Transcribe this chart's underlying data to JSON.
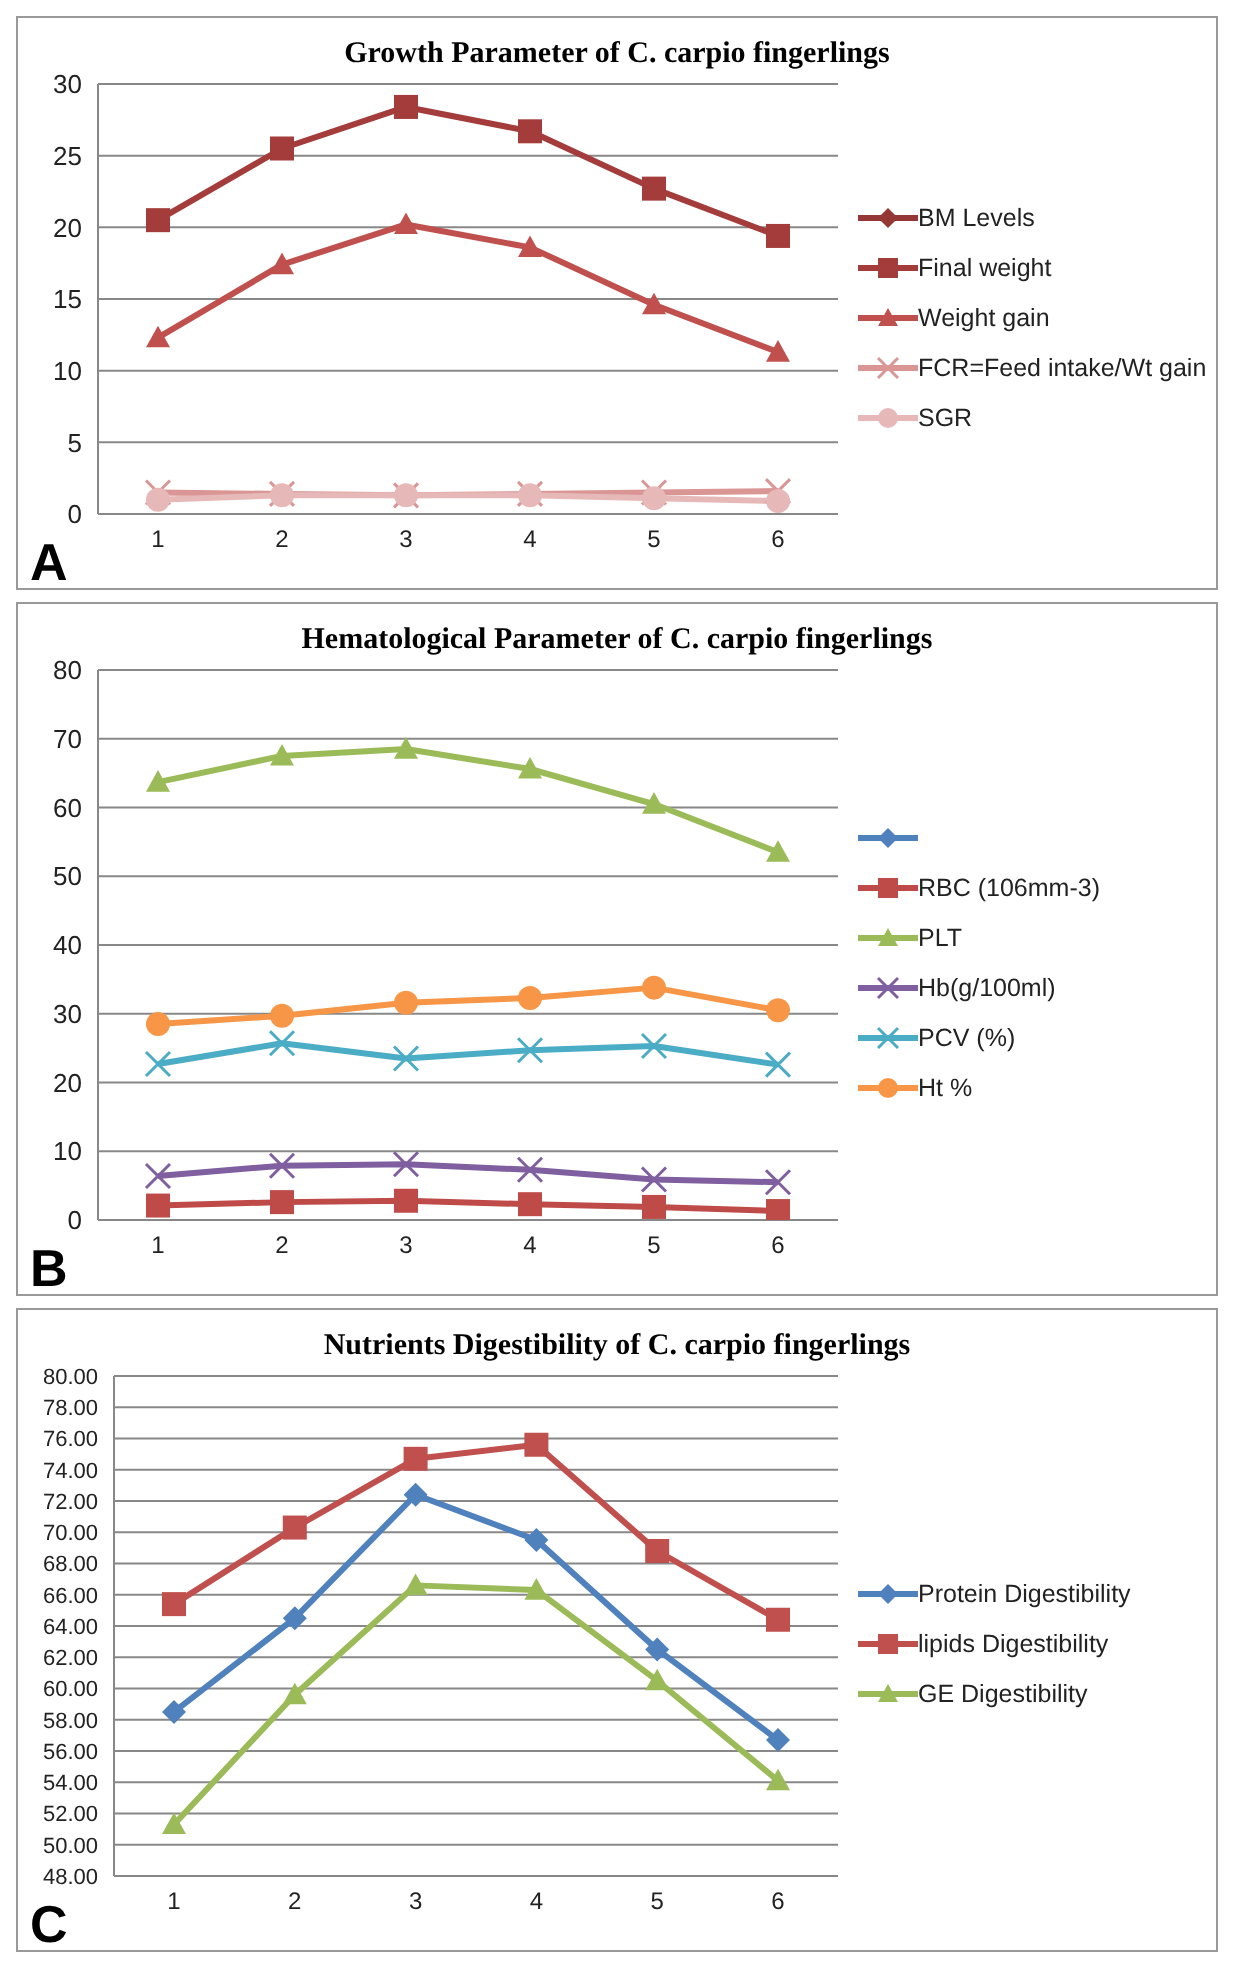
{
  "chart_data": [
    {
      "type": "line",
      "title": "Growth Parameter of C. carpio fingerlings",
      "categories": [
        "1",
        "2",
        "3",
        "4",
        "5",
        "6"
      ],
      "ylim": [
        0,
        30
      ],
      "yticks": [
        0,
        5,
        10,
        15,
        20,
        25,
        30
      ],
      "grid": "y",
      "legend": "right",
      "annotations": [
        "A"
      ],
      "series": [
        {
          "name": "BM Levels",
          "color": "#953735",
          "marker": "diamond",
          "values": [
            null,
            null,
            null,
            null,
            null,
            null
          ]
        },
        {
          "name": "Final weight",
          "color": "#a33c3a",
          "marker": "square",
          "values": [
            20.5,
            25.5,
            28.4,
            26.7,
            22.7,
            19.4
          ]
        },
        {
          "name": "Weight gain",
          "color": "#c0504d",
          "marker": "triangle",
          "values": [
            12.3,
            17.4,
            20.2,
            18.6,
            14.6,
            11.3
          ]
        },
        {
          "name": "FCR=Feed intake/Wt gain",
          "color": "#d99694",
          "marker": "cross",
          "values": [
            1.5,
            1.4,
            1.3,
            1.4,
            1.5,
            1.6
          ]
        },
        {
          "name": "SGR",
          "color": "#e6b9b8",
          "marker": "circle",
          "values": [
            1.0,
            1.3,
            1.3,
            1.3,
            1.1,
            0.9
          ]
        }
      ]
    },
    {
      "type": "line",
      "title": "Hematological Parameter of C. carpio fingerlings",
      "categories": [
        "1",
        "2",
        "3",
        "4",
        "5",
        "6"
      ],
      "ylim": [
        0,
        80
      ],
      "yticks": [
        0,
        10,
        20,
        30,
        40,
        50,
        60,
        70,
        80
      ],
      "grid": "y",
      "legend": "right",
      "annotations": [
        "B"
      ],
      "series": [
        {
          "color": "#4f81bd",
          "marker": "diamond",
          "values": [
            null,
            null,
            null,
            null,
            null,
            null
          ]
        },
        {
          "name": "RBC (106mm-3)",
          "color": "#be4b48",
          "marker": "square",
          "values": [
            2.1,
            2.6,
            2.8,
            2.3,
            1.9,
            1.3
          ]
        },
        {
          "name": "PLT",
          "color": "#9bbb59",
          "marker": "triangle",
          "values": [
            63.7,
            67.5,
            68.5,
            65.6,
            60.5,
            53.5
          ]
        },
        {
          "name": "Hb(g/100ml)",
          "color": "#7f5f9f",
          "marker": "cross",
          "values": [
            6.4,
            7.9,
            8.1,
            7.3,
            5.9,
            5.5
          ]
        },
        {
          "name": "PCV (%)",
          "color": "#4bacc6",
          "marker": "cross",
          "values": [
            22.7,
            25.7,
            23.5,
            24.7,
            25.3,
            22.6
          ]
        },
        {
          "name": "Ht %",
          "color": "#f79646",
          "marker": "circle",
          "values": [
            28.5,
            29.7,
            31.6,
            32.3,
            33.8,
            30.5
          ]
        }
      ]
    },
    {
      "type": "line",
      "title": "Nutrients Digestibility of C. carpio fingerlings",
      "categories": [
        "1",
        "2",
        "3",
        "4",
        "5",
        "6"
      ],
      "ylim": [
        48,
        80
      ],
      "yticks": [
        {
          "value": 48,
          "label": "48.00"
        },
        {
          "value": 50,
          "label": "50.00"
        },
        {
          "value": 52,
          "label": "52.00"
        },
        {
          "value": 54,
          "label": "54.00"
        },
        {
          "value": 56,
          "label": "56.00"
        },
        {
          "value": 58,
          "label": "58.00"
        },
        {
          "value": 60,
          "label": "60.00"
        },
        {
          "value": 62,
          "label": "62.00"
        },
        {
          "value": 64,
          "label": "64.00"
        },
        {
          "value": 66,
          "label": "66.00"
        },
        {
          "value": 68,
          "label": "68.00"
        },
        {
          "value": 70,
          "label": "70.00"
        },
        {
          "value": 72,
          "label": "72.00"
        },
        {
          "value": 74,
          "label": "74.00"
        },
        {
          "value": 76,
          "label": "76.00"
        },
        {
          "value": 78,
          "label": "78.00"
        },
        {
          "value": 80,
          "label": "80.00"
        }
      ],
      "grid": "y",
      "legend": "right",
      "annotations": [
        "C"
      ],
      "series": [
        {
          "name": "Protein Digestibility",
          "color": "#4f81bd",
          "marker": "diamond",
          "values": [
            58.5,
            64.5,
            72.4,
            69.5,
            62.5,
            56.7
          ]
        },
        {
          "name": "lipids  Digestibility",
          "color": "#c0504d",
          "marker": "square",
          "values": [
            65.4,
            70.3,
            74.7,
            75.6,
            68.8,
            64.4
          ]
        },
        {
          "name": "GE Digestibility",
          "color": "#9bbb59",
          "marker": "triangle",
          "values": [
            51.3,
            59.6,
            66.6,
            66.3,
            60.5,
            54.1
          ]
        }
      ]
    }
  ]
}
